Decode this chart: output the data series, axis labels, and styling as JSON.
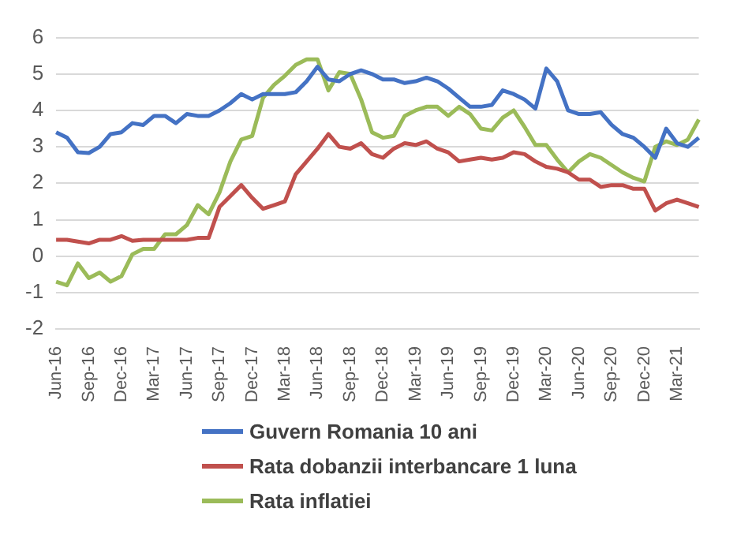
{
  "chart_data": {
    "type": "line",
    "categories": [
      "Jun-16",
      null,
      null,
      "Sep-16",
      null,
      null,
      "Dec-16",
      null,
      null,
      "Mar-17",
      null,
      null,
      "Jun-17",
      null,
      null,
      "Sep-17",
      null,
      null,
      "Dec-17",
      null,
      null,
      "Mar-18",
      null,
      null,
      "Jun-18",
      null,
      null,
      "Sep-18",
      null,
      null,
      "Dec-18",
      null,
      null,
      "Mar-19",
      null,
      null,
      "Jun-19",
      null,
      null,
      "Sep-19",
      null,
      null,
      "Dec-19",
      null,
      null,
      "Mar-20",
      null,
      null,
      "Jun-20",
      null,
      null,
      "Sep-20",
      null,
      null,
      "Dec-20",
      null,
      null,
      "Mar-21",
      null,
      null
    ],
    "series": [
      {
        "name": "Guvern Romania 10 ani",
        "color": "#4472c4",
        "values": [
          3.4,
          3.25,
          2.85,
          2.83,
          3.0,
          3.35,
          3.4,
          3.65,
          3.6,
          3.85,
          3.85,
          3.65,
          3.9,
          3.85,
          3.85,
          4.0,
          4.2,
          4.45,
          4.3,
          4.45,
          4.45,
          4.45,
          4.5,
          4.8,
          5.2,
          4.85,
          4.8,
          5.0,
          5.1,
          5.0,
          4.85,
          4.85,
          4.75,
          4.8,
          4.9,
          4.8,
          4.6,
          4.35,
          4.1,
          4.1,
          4.15,
          4.55,
          4.45,
          4.3,
          4.05,
          5.15,
          4.8,
          4.0,
          3.9,
          3.9,
          3.95,
          3.6,
          3.35,
          3.25,
          3.0,
          2.7,
          3.5,
          3.1,
          3.0,
          3.25
        ]
      },
      {
        "name": "Rata dobanzii interbancare 1 luna",
        "color": "#c0504d",
        "values": [
          0.45,
          0.45,
          0.4,
          0.35,
          0.45,
          0.45,
          0.55,
          0.42,
          0.45,
          0.45,
          0.45,
          0.45,
          0.45,
          0.5,
          0.5,
          1.35,
          1.65,
          1.95,
          1.6,
          1.3,
          1.4,
          1.5,
          2.25,
          2.6,
          2.95,
          3.35,
          3.0,
          2.95,
          3.1,
          2.8,
          2.7,
          2.95,
          3.1,
          3.05,
          3.15,
          2.95,
          2.85,
          2.6,
          2.65,
          2.7,
          2.65,
          2.7,
          2.85,
          2.8,
          2.6,
          2.45,
          2.4,
          2.3,
          2.1,
          2.1,
          1.9,
          1.95,
          1.95,
          1.85,
          1.85,
          1.25,
          1.45,
          1.55,
          1.45,
          1.35
        ]
      },
      {
        "name": "Rata inflatiei",
        "color": "#9bbb59",
        "values": [
          -0.7,
          -0.8,
          -0.2,
          -0.6,
          -0.45,
          -0.7,
          -0.55,
          0.05,
          0.2,
          0.2,
          0.6,
          0.6,
          0.85,
          1.4,
          1.15,
          1.75,
          2.6,
          3.2,
          3.3,
          4.35,
          4.7,
          4.95,
          5.25,
          5.4,
          5.4,
          4.55,
          5.05,
          5.0,
          4.3,
          3.4,
          3.25,
          3.3,
          3.85,
          4.0,
          4.1,
          4.1,
          3.85,
          4.1,
          3.9,
          3.5,
          3.45,
          3.8,
          4.0,
          3.55,
          3.05,
          3.05,
          2.65,
          2.3,
          2.6,
          2.8,
          2.7,
          2.5,
          2.3,
          2.15,
          2.05,
          3.0,
          3.15,
          3.05,
          3.2,
          3.75
        ]
      }
    ],
    "ylim": [
      -2,
      6
    ],
    "yticks": [
      -2,
      -1,
      0,
      1,
      2,
      3,
      4,
      5,
      6
    ],
    "grid": "y",
    "legend": "bottom",
    "marker": "none",
    "line_style": "solid"
  }
}
